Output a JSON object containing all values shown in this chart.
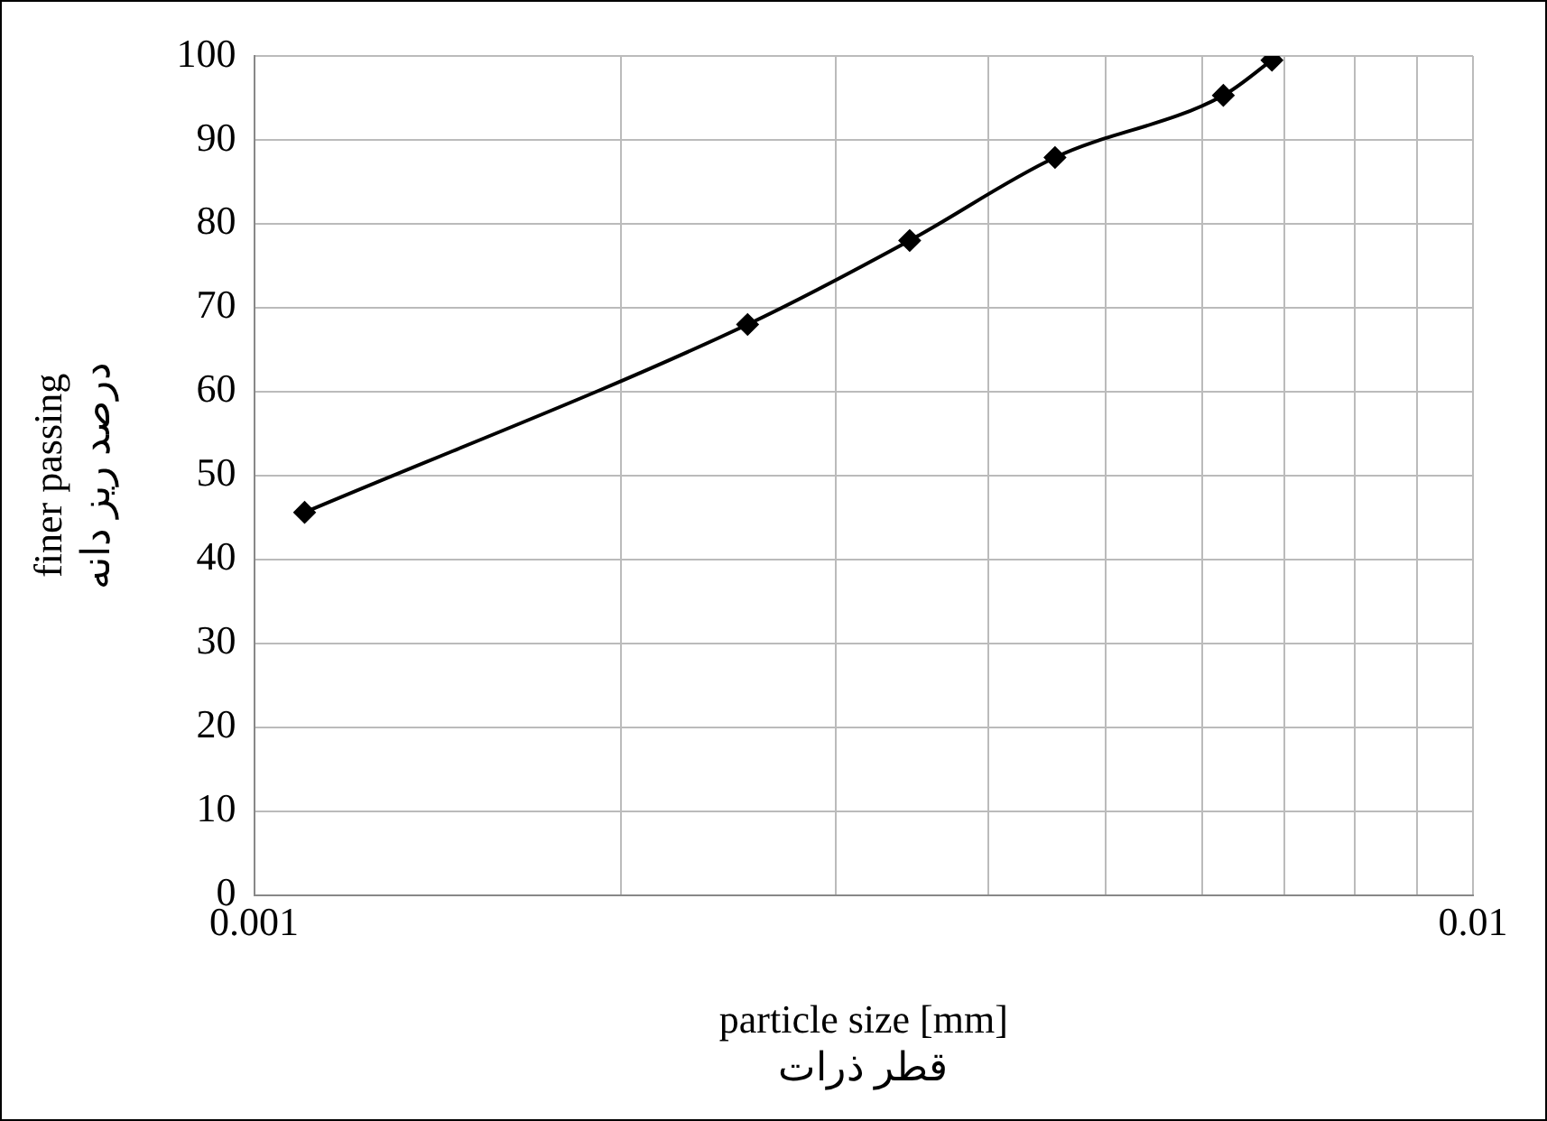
{
  "chart_data": {
    "type": "line",
    "xlabel": "particle size [mm]\nقطر ذرات",
    "ylabel": "finer passing\nدرصد ریز دانه",
    "x": [
      0.0011,
      0.00254,
      0.00345,
      0.00454,
      0.00624,
      0.00684
    ],
    "series": [
      {
        "color": "#000000",
        "values": [
          45.6,
          68,
          78,
          87.9,
          95.3,
          99.5
        ]
      }
    ],
    "log": "x",
    "xlim": [
      0.001,
      0.01
    ],
    "ylim": [
      0,
      100
    ],
    "xticks": [
      0.001,
      {
        "value": 0.002,
        "label": null
      },
      {
        "value": 0.003,
        "label": null
      },
      {
        "value": 0.004,
        "label": null
      },
      {
        "value": 0.005,
        "label": null
      },
      {
        "value": 0.006,
        "label": null
      },
      {
        "value": 0.007,
        "label": null
      },
      {
        "value": 0.008,
        "label": null
      },
      {
        "value": 0.009,
        "label": null
      },
      0.01
    ],
    "yticks": [
      0,
      10,
      20,
      30,
      40,
      50,
      60,
      70,
      80,
      90,
      100
    ],
    "grid": true,
    "legend": false,
    "marker": "diamond",
    "line_style": "solid"
  }
}
